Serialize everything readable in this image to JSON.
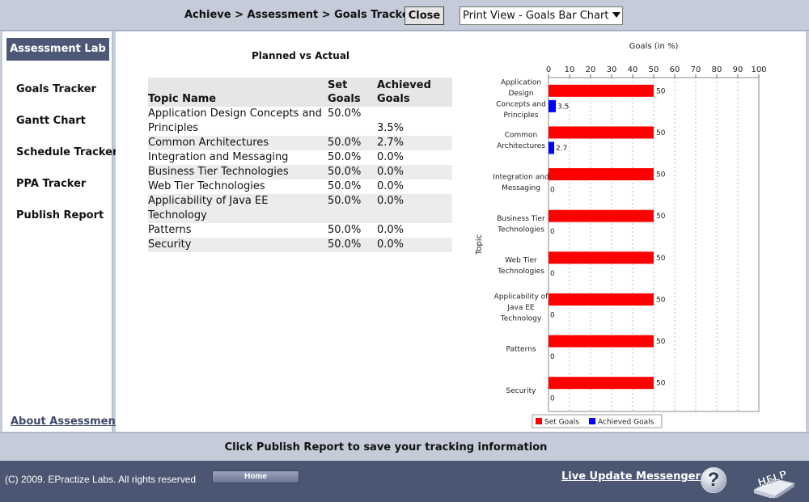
{
  "header": {
    "breadcrumb": "Achieve > Assessment > Goals Tracker",
    "close_label": "Close",
    "view_select_value": "Print View - Goals Bar Chart"
  },
  "sidebar": {
    "header": "Assessment Lab",
    "items": [
      {
        "label": "Goals Tracker"
      },
      {
        "label": "Gantt Chart"
      },
      {
        "label": "Schedule Tracker"
      },
      {
        "label": "PPA Tracker"
      },
      {
        "label": "Publish Report"
      }
    ],
    "about_link": "About Assessment"
  },
  "table": {
    "title": "Planned vs Actual",
    "headers": [
      "Topic Name",
      "Set Goals",
      "Achieved Goals"
    ],
    "rows": [
      {
        "topic": "Application Design Concepts and Principles",
        "set": "50.0%",
        "achieved": "3.5%"
      },
      {
        "topic": "Common Architectures",
        "set": "50.0%",
        "achieved": "2.7%"
      },
      {
        "topic": "Integration and Messaging",
        "set": "50.0%",
        "achieved": "0.0%"
      },
      {
        "topic": "Business Tier Technologies",
        "set": "50.0%",
        "achieved": "0.0%"
      },
      {
        "topic": "Web Tier Technologies",
        "set": "50.0%",
        "achieved": "0.0%"
      },
      {
        "topic": "Applicability of Java EE Technology",
        "set": "50.0%",
        "achieved": "0.0%"
      },
      {
        "topic": "Patterns",
        "set": "50.0%",
        "achieved": "0.0%"
      },
      {
        "topic": "Security",
        "set": "50.0%",
        "achieved": "0.0%"
      }
    ]
  },
  "chart_data": {
    "type": "bar",
    "orientation": "horizontal",
    "title": "",
    "xlabel": "Goals (in %)",
    "ylabel": "Topic",
    "xlim": [
      0,
      100
    ],
    "x_ticks": [
      0,
      10,
      20,
      30,
      40,
      50,
      60,
      70,
      80,
      90,
      100
    ],
    "axis_position": "top",
    "grid": true,
    "legend_position": "bottom",
    "categories": [
      [
        "Application",
        "Design",
        "Concepts and",
        "Principles"
      ],
      [
        "Common",
        "Architectures"
      ],
      [
        "Integration and",
        "Messaging"
      ],
      [
        "Business Tier",
        "Technologies"
      ],
      [
        "Web Tier",
        "Technologies"
      ],
      [
        "Applicability of",
        "Java EE",
        "Technology"
      ],
      [
        "Patterns"
      ],
      [
        "Security"
      ]
    ],
    "series": [
      {
        "name": "Set Goals",
        "color": "#ff0000",
        "values": [
          50,
          50,
          50,
          50,
          50,
          50,
          50,
          50
        ]
      },
      {
        "name": "Achieved Goals",
        "color": "#0000ff",
        "values": [
          3.5,
          2.7,
          0,
          0,
          0,
          0,
          0,
          0
        ]
      }
    ]
  },
  "status_text": "Click Publish Report to save your tracking information",
  "footer": {
    "copyright": "(C) 2009. EPractize Labs. All rights reserved",
    "home_label": "Home",
    "messenger_label": "Live Update Messenger",
    "help_label": "HELP",
    "question_mark": "?"
  }
}
